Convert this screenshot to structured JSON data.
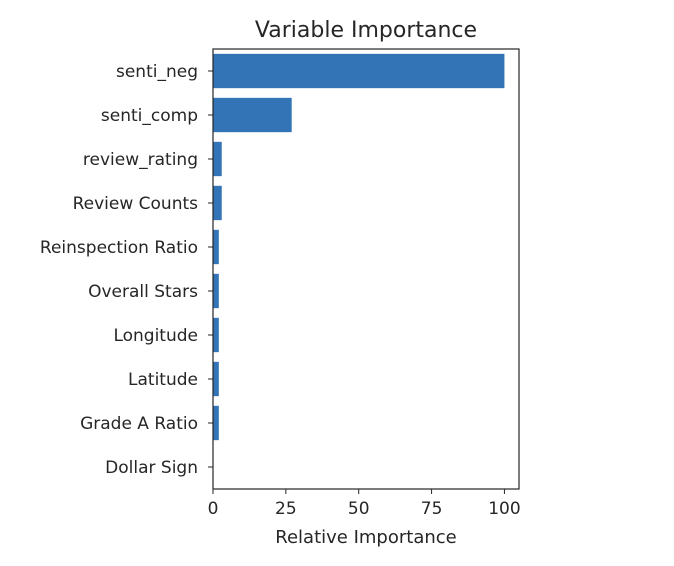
{
  "chart_data": {
    "type": "bar",
    "orientation": "horizontal",
    "title": "Variable Importance",
    "xlabel": "Relative Importance",
    "ylabel": "",
    "categories": [
      "senti_neg",
      "senti_comp",
      "review_rating",
      "Review Counts",
      "Reinspection Ratio",
      "Overall Stars",
      "Longitude",
      "Latitude",
      "Grade A Ratio",
      "Dollar Sign"
    ],
    "values": [
      100,
      27,
      3,
      3,
      2,
      2,
      2,
      2,
      2,
      0
    ],
    "xlim": [
      0,
      105
    ],
    "xticks": [
      0,
      25,
      50,
      75,
      100
    ],
    "xtick_labels": [
      "0",
      "25",
      "50",
      "75",
      "100"
    ],
    "bar_color": "#3274b5",
    "grid": false,
    "legend": "none"
  }
}
